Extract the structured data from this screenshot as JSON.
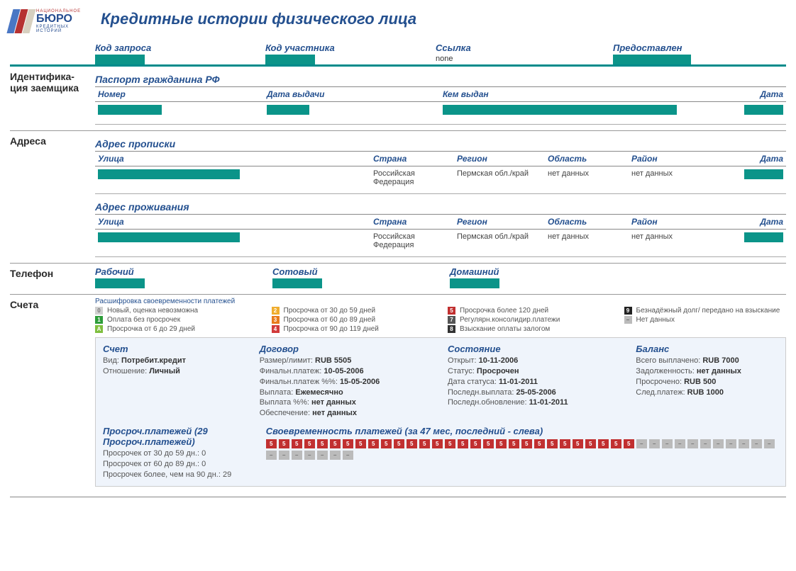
{
  "logo": {
    "top": "НАЦИОНАЛЬНОЕ",
    "main": "БЮРО",
    "sub": "КРЕДИТНЫХ ИСТОРИЙ"
  },
  "page_title": "Кредитные истории физического лица",
  "colors": {
    "teal": "#0b9489",
    "heading": "#24508f",
    "border_thick": "#008b8b"
  },
  "top_fields": {
    "request_code_label": "Код запроса",
    "member_code_label": "Код участника",
    "link_label": "Ссылка",
    "link_value": "none",
    "provided_label": "Предоставлен"
  },
  "identification": {
    "side_label": "Идентифика-\nция заемщика",
    "passport_heading": "Паспорт гражданина РФ",
    "cols": {
      "number": "Номер",
      "issue_date": "Дата выдачи",
      "issued_by": "Кем выдан",
      "date": "Дата"
    }
  },
  "addresses": {
    "side_label": "Адреса",
    "reg_heading": "Адрес прописки",
    "res_heading": "Адрес проживания",
    "cols": {
      "street": "Улица",
      "country": "Страна",
      "region": "Регион",
      "oblast": "Область",
      "district": "Район",
      "date": "Дата"
    },
    "rows": [
      {
        "country": "Российская Федерация",
        "region": "Пермская обл./край",
        "oblast": "нет данных",
        "district": "нет данных"
      },
      {
        "country": "Российская Федерация",
        "region": "Пермская обл./край",
        "oblast": "нет данных",
        "district": "нет данных"
      }
    ]
  },
  "phone": {
    "side_label": "Телефон",
    "work": "Рабочий",
    "mobile": "Сотовый",
    "home": "Домашний"
  },
  "accounts": {
    "side_label": "Счета",
    "legend_title": "Расшифровка своевременности платежей",
    "legend": [
      {
        "code": "0",
        "bg": "#d0d0d0",
        "fg": "#777",
        "text": "Новый, оценка невозможна"
      },
      {
        "code": "2",
        "bg": "#f0ad2e",
        "fg": "#fff",
        "text": "Просрочка от 30 до 59 дней"
      },
      {
        "code": "5",
        "bg": "#c13030",
        "fg": "#fff",
        "text": "Просрочка более 120 дней"
      },
      {
        "code": "9",
        "bg": "#222",
        "fg": "#fff",
        "text": "Безнадёжный долг/ передано на взыскание"
      },
      {
        "code": "1",
        "bg": "#2e9d3a",
        "fg": "#fff",
        "text": "Оплата без просрочек"
      },
      {
        "code": "3",
        "bg": "#e87a1c",
        "fg": "#fff",
        "text": "Просрочка от 60 до 89 дней"
      },
      {
        "code": "7",
        "bg": "#555",
        "fg": "#fff",
        "text": "Регулярн.консолидир.платежи"
      },
      {
        "code": "–",
        "bg": "#bbb",
        "fg": "#666",
        "text": "Нет данных"
      },
      {
        "code": "A",
        "bg": "#7fbf3f",
        "fg": "#fff",
        "text": "Просрочка от 6 до 29 дней"
      },
      {
        "code": "4",
        "bg": "#d13a3a",
        "fg": "#fff",
        "text": "Просрочка от 90 до 119 дней"
      },
      {
        "code": "8",
        "bg": "#333",
        "fg": "#fff",
        "text": "Взыскание оплаты залогом"
      }
    ],
    "account": {
      "headers": {
        "acct": "Счет",
        "contract": "Договор",
        "state": "Состояние",
        "balance": "Баланс"
      },
      "acct": {
        "kind_label": "Вид:",
        "kind": "Потребит.кредит",
        "rel_label": "Отношение:",
        "rel": "Личный"
      },
      "contract": {
        "size_label": "Размер/лимит:",
        "size": "RUB 5505",
        "final_label": "Финальн.платеж:",
        "final": "10-05-2006",
        "finalpct_label": "Финальн.платеж %%:",
        "finalpct": "15-05-2006",
        "pay_label": "Выплата:",
        "pay": "Ежемесячно",
        "paypct_label": "Выплата %%:",
        "paypct": "нет данных",
        "collat_label": "Обеспечение:",
        "collat": "нет данных"
      },
      "state": {
        "opened_label": "Открыт:",
        "opened": "10-11-2006",
        "status_label": "Статус:",
        "status": "Просрочен",
        "status_date_label": "Дата статуса:",
        "status_date": "11-01-2011",
        "last_pay_label": "Последн.выплата:",
        "last_pay": "25-05-2006",
        "last_upd_label": "Последн.обновление:",
        "last_upd": "11-01-2011"
      },
      "balance": {
        "paid_label": "Всего выплачено:",
        "paid": "RUB 7000",
        "debt_label": "Задолженность:",
        "debt": "нет данных",
        "overdue_label": "Просрочено:",
        "overdue": "RUB 500",
        "next_label": "След.платеж:",
        "next": "RUB 1000"
      },
      "overdue_summary": {
        "heading": "Просроч.платежей (29 Просроч.платежей)",
        "r30_label": "Просрочек от 30 до 59 дн.:",
        "r30": "0",
        "r60_label": "Просрочек от 60 до 89 дн.:",
        "r60": "0",
        "r90_label": "Просрочек более, чем на 90 дн.:",
        "r90": "29"
      },
      "timeline_heading": "Своевременность платежей (за 47 мес, последний - слева)",
      "timeline": [
        "5",
        "5",
        "5",
        "5",
        "5",
        "5",
        "5",
        "5",
        "5",
        "5",
        "5",
        "5",
        "5",
        "5",
        "5",
        "5",
        "5",
        "5",
        "5",
        "5",
        "5",
        "5",
        "5",
        "5",
        "5",
        "5",
        "5",
        "5",
        "5",
        "–",
        "–",
        "–",
        "–",
        "–",
        "–",
        "–",
        "–",
        "–",
        "–",
        "–",
        "–",
        "–",
        "–",
        "–",
        "–",
        "–",
        "–"
      ],
      "timeline_colors": {
        "5": "#c13030",
        "–": "#bbb"
      },
      "timeline_fg": {
        "5": "#fff",
        "–": "#707070"
      }
    }
  }
}
